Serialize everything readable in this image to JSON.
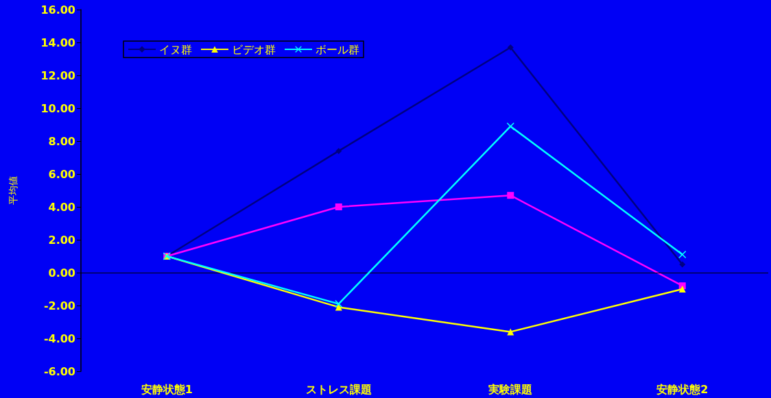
{
  "chart_data": {
    "type": "line",
    "ylabel": "平均値",
    "categories": [
      "安静状態1",
      "ストレス課題",
      "実験課題",
      "安静状態2"
    ],
    "series": [
      {
        "name": "イヌ群",
        "color": "#000080",
        "marker": "diamond",
        "values": [
          1.0,
          7.4,
          13.7,
          0.5
        ]
      },
      {
        "color": "#ff00ff",
        "marker": "square",
        "values": [
          1.0,
          4.0,
          4.7,
          -0.8
        ]
      },
      {
        "name": "ビデオ群",
        "color": "#ffff00",
        "marker": "triangle",
        "values": [
          1.0,
          -2.1,
          -3.6,
          -1.0
        ]
      },
      {
        "name": "ボール群",
        "color": "#00ffff",
        "marker": "cross",
        "values": [
          1.0,
          -1.9,
          8.9,
          1.1
        ]
      }
    ],
    "ylim": [
      -6,
      16
    ],
    "yticks": [
      {
        "value": -6,
        "label": "-6.00"
      },
      {
        "value": -4,
        "label": "-4.00"
      },
      {
        "value": -2,
        "label": "-2.00"
      },
      {
        "value": 0,
        "label": "0.00"
      },
      {
        "value": 2,
        "label": "2.00"
      },
      {
        "value": 4,
        "label": "4.00"
      },
      {
        "value": 6,
        "label": "6.00"
      },
      {
        "value": 8,
        "label": "8.00"
      },
      {
        "value": 10,
        "label": "10.00"
      },
      {
        "value": 12,
        "label": "12.00"
      },
      {
        "value": 14,
        "label": "14.00"
      },
      {
        "value": 16,
        "label": "16.00"
      }
    ],
    "ref_lines": [
      {
        "axis": "y",
        "value": 0,
        "color": "#000000"
      }
    ],
    "grid": false,
    "legend": "top left"
  }
}
